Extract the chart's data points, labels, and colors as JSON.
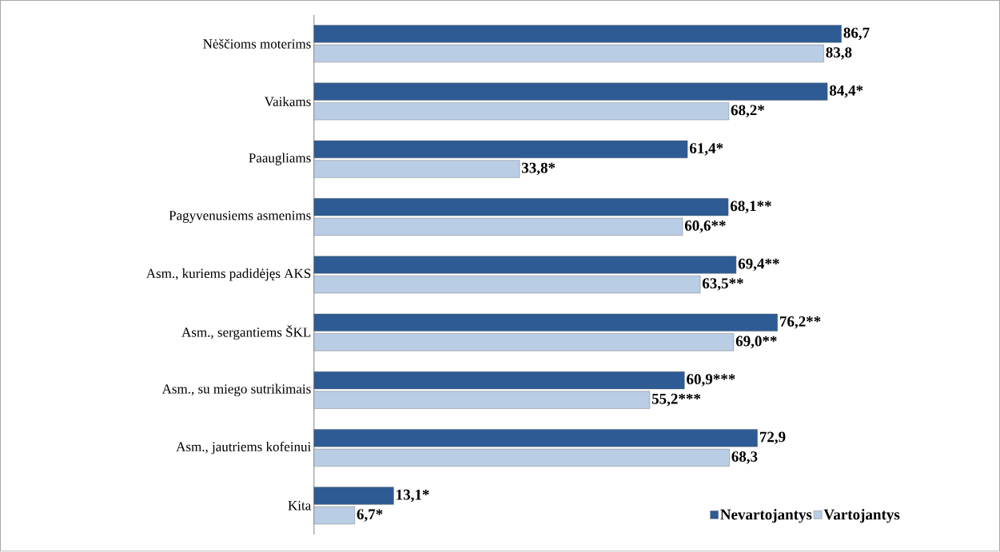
{
  "chart_data": {
    "type": "bar",
    "orientation": "horizontal",
    "categories": [
      "Nėščioms moterims",
      "Vaikams",
      "Paaugliams",
      "Pagyvenusiems asmenims",
      "Asm., kuriems padidėjęs AKS",
      "Asm., sergantiems ŠKL",
      "Asm., su miego sutrikimais",
      "Asm., jautriems kofeinui",
      "Kita"
    ],
    "series": [
      {
        "name": "Nevartojantys",
        "color": "#2e5b94",
        "values": [
          86.7,
          84.4,
          61.4,
          68.1,
          69.4,
          76.2,
          60.9,
          72.9,
          13.1
        ],
        "value_labels": [
          "86,7",
          "84,4*",
          "61,4*",
          "68,1**",
          "69,4**",
          "76,2**",
          "60,9***",
          "72,9",
          "13,1*"
        ]
      },
      {
        "name": "Vartojantys",
        "color": "#b9cde5",
        "values": [
          83.8,
          68.2,
          33.8,
          60.6,
          63.5,
          69.0,
          55.2,
          68.3,
          6.7
        ],
        "value_labels": [
          "83,8",
          "68,2*",
          "33,8*",
          "60,6**",
          "63,5**",
          "69,0**",
          "55,2***",
          "68,3",
          "6,7*"
        ]
      }
    ],
    "legend": "bottom right"
  }
}
